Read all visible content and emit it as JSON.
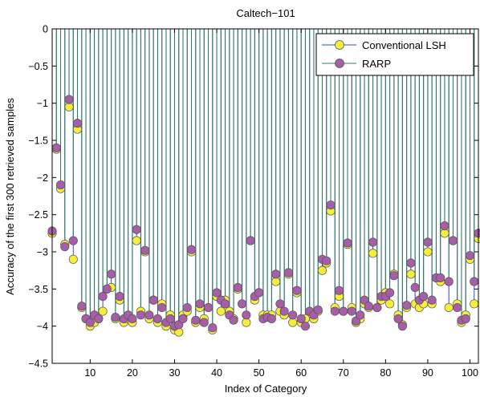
{
  "chart_data": {
    "type": "stem",
    "title": "Caltech−101",
    "xlabel": "Index of Category",
    "ylabel": "Accuracy of the first 300 retrieved samples",
    "xlim": [
      1,
      102
    ],
    "ylim": [
      -4.5,
      0
    ],
    "xticks": [
      10,
      20,
      30,
      40,
      50,
      60,
      70,
      80,
      90,
      100
    ],
    "yticks": [
      0,
      -0.5,
      -1,
      -1.5,
      -2,
      -2.5,
      -3,
      -3.5,
      -4,
      -4.5
    ],
    "ytick_labels": [
      "0",
      "−0.5",
      "−1",
      "−1.5",
      "−2",
      "−2.5",
      "−3",
      "−3.5",
      "−4",
      "−4.5"
    ],
    "grid": false,
    "legend_position": "top-right",
    "x": [
      1,
      2,
      3,
      4,
      5,
      6,
      7,
      8,
      9,
      10,
      11,
      12,
      13,
      14,
      15,
      16,
      17,
      18,
      19,
      20,
      21,
      22,
      23,
      24,
      25,
      26,
      27,
      28,
      29,
      30,
      31,
      32,
      33,
      34,
      35,
      36,
      37,
      38,
      39,
      40,
      41,
      42,
      43,
      44,
      45,
      46,
      47,
      48,
      49,
      50,
      51,
      52,
      53,
      54,
      55,
      56,
      57,
      58,
      59,
      60,
      61,
      62,
      63,
      64,
      65,
      66,
      67,
      68,
      69,
      70,
      71,
      72,
      73,
      74,
      75,
      76,
      77,
      78,
      79,
      80,
      81,
      82,
      83,
      84,
      85,
      86,
      87,
      88,
      89,
      90,
      91,
      92,
      93,
      94,
      95,
      96,
      97,
      98,
      99,
      100,
      101,
      102
    ],
    "series": [
      {
        "name": "Conventional LSH",
        "stem_color": "#3b44c7",
        "marker_color": "#f5ee3a",
        "values": [
          -2.75,
          -1.62,
          -2.15,
          -2.9,
          -1.05,
          -3.1,
          -1.35,
          -3.75,
          -3.9,
          -4.0,
          -3.95,
          -3.9,
          -3.8,
          -3.5,
          -3.48,
          -3.9,
          -3.65,
          -3.95,
          -3.9,
          -3.95,
          -2.85,
          -3.8,
          -3.0,
          -3.9,
          -3.65,
          -3.95,
          -3.7,
          -4.0,
          -3.85,
          -4.05,
          -4.08,
          -3.85,
          -3.8,
          -3.0,
          -3.95,
          -3.75,
          -3.9,
          -3.75,
          -4.05,
          -3.6,
          -3.8,
          -3.65,
          -3.8,
          -3.9,
          -3.5,
          -3.7,
          -3.95,
          -2.85,
          -3.65,
          -3.55,
          -3.85,
          -3.85,
          -3.85,
          -3.4,
          -3.8,
          -3.85,
          -3.3,
          -3.95,
          -3.55,
          -3.95,
          -3.9,
          -3.8,
          -3.9,
          -3.8,
          -3.25,
          -3.15,
          -2.45,
          -3.75,
          -3.6,
          -3.8,
          -2.9,
          -3.75,
          -3.95,
          -3.9,
          -3.7,
          -3.75,
          -3.02,
          -3.75,
          -3.65,
          -3.55,
          -3.7,
          -3.3,
          -3.85,
          -3.98,
          -3.75,
          -3.3,
          -3.7,
          -3.75,
          -3.7,
          -3.0,
          -3.7,
          -3.35,
          -3.4,
          -2.75,
          -3.75,
          -2.85,
          -3.7,
          -3.95,
          -3.85,
          -3.1,
          -3.7,
          -2.82
        ]
      },
      {
        "name": "RARP",
        "stem_color": "#2f7d5c",
        "marker_color": "#a85da8",
        "values": [
          -2.72,
          -1.6,
          -2.1,
          -2.93,
          -0.95,
          -2.85,
          -1.27,
          -3.73,
          -3.9,
          -3.95,
          -3.85,
          -3.9,
          -3.6,
          -3.5,
          -3.3,
          -3.88,
          -3.6,
          -3.9,
          -3.85,
          -3.9,
          -2.7,
          -3.85,
          -2.98,
          -3.85,
          -3.65,
          -3.9,
          -3.75,
          -3.95,
          -3.9,
          -4.0,
          -3.98,
          -3.9,
          -3.75,
          -2.97,
          -3.92,
          -3.7,
          -3.95,
          -3.75,
          -4.02,
          -3.55,
          -3.65,
          -3.7,
          -3.85,
          -3.92,
          -3.48,
          -3.7,
          -3.85,
          -2.85,
          -3.6,
          -3.55,
          -3.9,
          -3.88,
          -3.9,
          -3.3,
          -3.7,
          -3.8,
          -3.28,
          -3.85,
          -3.52,
          -3.9,
          -4.0,
          -3.8,
          -3.85,
          -3.78,
          -3.1,
          -3.12,
          -2.37,
          -3.8,
          -3.52,
          -3.8,
          -2.88,
          -3.8,
          -3.93,
          -3.85,
          -3.65,
          -3.73,
          -2.87,
          -3.75,
          -3.6,
          -3.6,
          -3.55,
          -3.32,
          -3.9,
          -4.0,
          -3.72,
          -3.15,
          -3.48,
          -3.65,
          -3.6,
          -2.87,
          -3.65,
          -3.35,
          -3.35,
          -2.65,
          -3.4,
          -2.85,
          -3.75,
          -3.92,
          -3.9,
          -3.05,
          -3.4,
          -2.75
        ]
      }
    ]
  }
}
